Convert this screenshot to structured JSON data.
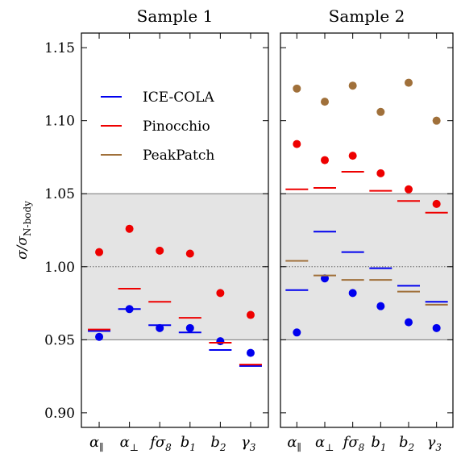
{
  "chart_data": {
    "type": "scatter",
    "ylabel": "σ/σN-body",
    "ylabel_parts": {
      "main": "σ/σ",
      "sub": "N-body"
    },
    "ylim": [
      0.89,
      1.16
    ],
    "yticks": [
      0.9,
      0.95,
      1.0,
      1.05,
      1.1,
      1.15
    ],
    "ytick_labels": [
      "0.90",
      "0.95",
      "1.00",
      "1.05",
      "1.10",
      "1.15"
    ],
    "shaded_band": [
      0.95,
      1.05
    ],
    "reference_line": 1.0,
    "categories": [
      "α∥",
      "α⊥",
      "fσ8",
      "b1",
      "b2",
      "γ3"
    ],
    "category_labels": [
      {
        "main": "α",
        "sub": "∥"
      },
      {
        "main": "α",
        "sub": "⊥"
      },
      {
        "main": "fσ",
        "sub": "8"
      },
      {
        "main": "b",
        "sub": "1"
      },
      {
        "main": "b",
        "sub": "2"
      },
      {
        "main": "γ",
        "sub": "3"
      }
    ],
    "legend": {
      "placement": "upper-left of Sample 1 panel",
      "entries": [
        {
          "label": "ICE-COLA",
          "color": "#0000ee"
        },
        {
          "label": "Pinocchio",
          "color": "#ee0000"
        },
        {
          "label": "PeakPatch",
          "color": "#a0703a"
        }
      ]
    },
    "marker_meaning": {
      "dash": "bar",
      "dot": "point"
    },
    "panels": [
      {
        "title": "Sample 1",
        "series": [
          {
            "name": "ICE-COLA",
            "color": "#0000ee",
            "dots": [
              0.952,
              0.971,
              0.958,
              0.958,
              0.949,
              0.941
            ],
            "dashes": [
              0.956,
              0.971,
              0.96,
              0.955,
              0.943,
              0.932
            ]
          },
          {
            "name": "Pinocchio",
            "color": "#ee0000",
            "dots": [
              1.01,
              1.026,
              1.011,
              1.009,
              0.982,
              0.967
            ],
            "dashes": [
              0.957,
              0.985,
              0.976,
              0.965,
              0.948,
              0.933
            ]
          }
        ]
      },
      {
        "title": "Sample 2",
        "series": [
          {
            "name": "ICE-COLA",
            "color": "#0000ee",
            "dots": [
              0.955,
              0.992,
              0.982,
              0.973,
              0.962,
              0.958
            ],
            "dashes": [
              0.984,
              1.024,
              1.01,
              0.999,
              0.987,
              0.976
            ]
          },
          {
            "name": "Pinocchio",
            "color": "#ee0000",
            "dots": [
              1.084,
              1.073,
              1.076,
              1.064,
              1.053,
              1.043
            ],
            "dashes": [
              1.053,
              1.054,
              1.065,
              1.052,
              1.045,
              1.037
            ]
          },
          {
            "name": "PeakPatch",
            "color": "#a0703a",
            "dots": [
              1.122,
              1.113,
              1.124,
              1.106,
              1.126,
              1.1
            ],
            "dashes": [
              1.004,
              0.994,
              0.991,
              0.991,
              0.983,
              0.974
            ]
          }
        ]
      }
    ]
  }
}
